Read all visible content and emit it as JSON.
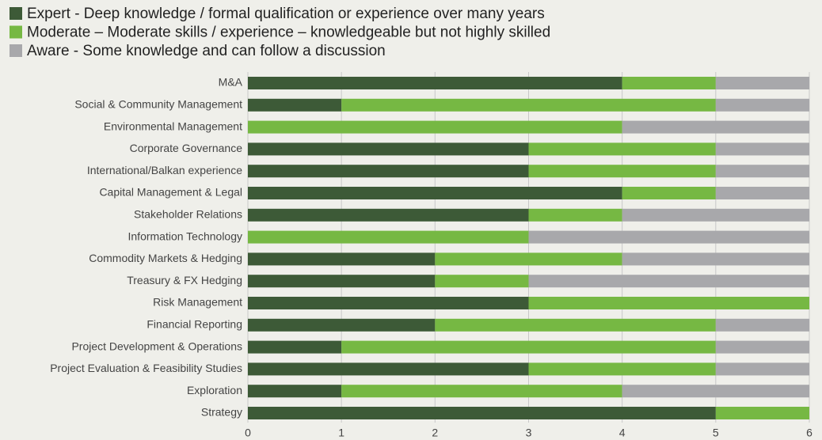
{
  "chart_data": {
    "type": "bar",
    "orientation": "horizontal",
    "stacked": true,
    "categories": [
      "M&A",
      "Social & Community Management",
      "Environmental Management",
      "Corporate Governance",
      "International/Balkan experience",
      "Capital Management & Legal",
      "Stakeholder Relations",
      "Information Technology",
      "Commodity Markets & Hedging",
      "Treasury & FX Hedging",
      "Risk Management",
      "Financial Reporting",
      "Project Development & Operations",
      "Project Evaluation & Feasibility Studies",
      "Exploration",
      "Strategy"
    ],
    "series": [
      {
        "name": "Expert - Deep knowledge / formal qualification or experience over many years",
        "color": "#3d5a37",
        "values": [
          4,
          1,
          0,
          3,
          3,
          4,
          3,
          0,
          2,
          2,
          3,
          2,
          1,
          3,
          1,
          5
        ]
      },
      {
        "name": "Moderate – Moderate skills / experience – knowledgeable but not highly skilled",
        "color": "#76b843",
        "values": [
          1,
          4,
          4,
          2,
          2,
          1,
          1,
          3,
          2,
          1,
          3,
          3,
          4,
          2,
          3,
          1
        ]
      },
      {
        "name": "Aware - Some knowledge and can follow a discussion",
        "color": "#a8a8ab",
        "values": [
          1,
          1,
          2,
          1,
          1,
          1,
          2,
          3,
          2,
          3,
          0,
          1,
          1,
          1,
          2,
          0
        ]
      }
    ],
    "xlim": [
      0,
      6
    ],
    "xticks": [
      0,
      1,
      2,
      3,
      4,
      5,
      6
    ],
    "grid": true,
    "legend": "top-left"
  }
}
